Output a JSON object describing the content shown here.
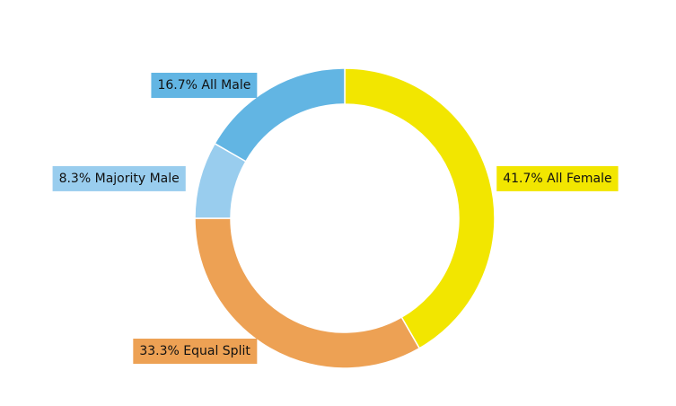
{
  "chart_data": {
    "type": "donut",
    "categories": [
      "All Female",
      "Equal Split",
      "Majority Male",
      "All Male"
    ],
    "values": [
      41.7,
      33.3,
      8.3,
      16.7
    ],
    "value_labels": [
      "41.7%",
      "33.3%",
      "8.3%",
      "16.7%"
    ],
    "colors": [
      "#f2e600",
      "#eda154",
      "#99cdee",
      "#62b5e3"
    ]
  }
}
